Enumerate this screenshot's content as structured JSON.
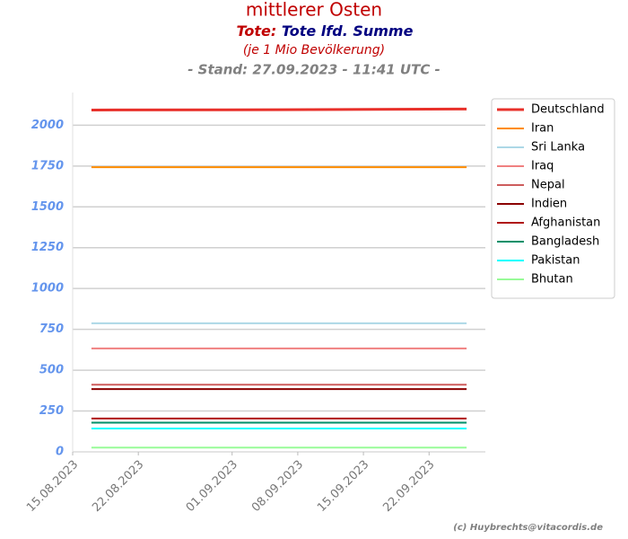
{
  "chart_data": {
    "type": "line",
    "title": "mittlerer Osten",
    "subtitle_label": "Tote:",
    "subtitle": "Tote lfd. Summe",
    "note": "(je 1 Mio Bevölkerung)",
    "stand": "- Stand: 27.09.2023 - 11:41 UTC -",
    "credit": "(c) Huybrechts@vitacordis.de",
    "x": [
      "2023-08-17",
      "2023-09-06",
      "2023-09-26"
    ],
    "xlim": [
      "2023-08-15",
      "2023-09-28"
    ],
    "xticks": [
      {
        "value": "2023-08-15",
        "label": "15.08.2023"
      },
      {
        "value": "2023-08-22",
        "label": "22.08.2023"
      },
      {
        "value": "2023-09-01",
        "label": "01.09.2023"
      },
      {
        "value": "2023-09-08",
        "label": "08.09.2023"
      },
      {
        "value": "2023-09-15",
        "label": "15.09.2023"
      },
      {
        "value": "2023-09-22",
        "label": "22.09.2023"
      }
    ],
    "ylim": [
      0,
      2200
    ],
    "yticks": [
      0,
      250,
      500,
      750,
      1000,
      1250,
      1500,
      1750,
      2000
    ],
    "grid": true,
    "legend": "upper right outside",
    "series": [
      {
        "name": "Deutschland",
        "color": "#e8302a",
        "values": [
          2093,
          2095,
          2099
        ]
      },
      {
        "name": "Iran",
        "color": "#ff8c00",
        "values": [
          1743,
          1743,
          1743
        ]
      },
      {
        "name": "Sri Lanka",
        "color": "#add8e6",
        "values": [
          787,
          787,
          787
        ]
      },
      {
        "name": "Iraq",
        "color": "#f08080",
        "values": [
          633,
          633,
          633
        ]
      },
      {
        "name": "Nepal",
        "color": "#cd5c5c",
        "values": [
          411,
          411,
          411
        ]
      },
      {
        "name": "Indien",
        "color": "#8b0000",
        "values": [
          384,
          384,
          384
        ]
      },
      {
        "name": "Afghanistan",
        "color": "#b01515",
        "values": [
          204,
          204,
          204
        ]
      },
      {
        "name": "Bangladesh",
        "color": "#00906a",
        "values": [
          179,
          179,
          179
        ]
      },
      {
        "name": "Pakistan",
        "color": "#00ffff",
        "values": [
          143,
          143,
          143
        ]
      },
      {
        "name": "Bhutan",
        "color": "#98fb98",
        "values": [
          26,
          26,
          26
        ]
      }
    ]
  }
}
